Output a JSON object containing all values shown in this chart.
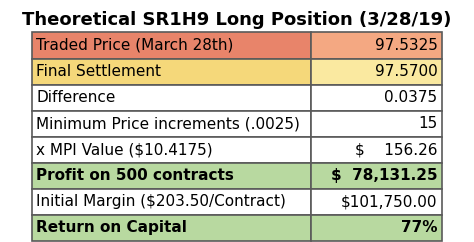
{
  "title": "Theoretical SR1H9 Long Position (3/28/19)",
  "rows": [
    {
      "label": "Traded Price (March 28th)",
      "value": "97.5325",
      "bg_label": "#E8846A",
      "bg_value": "#F4A882",
      "bold": false
    },
    {
      "label": "Final Settlement",
      "value": "97.5700",
      "bg_label": "#F5D87A",
      "bg_value": "#FAE9A0",
      "bold": false
    },
    {
      "label": "Difference",
      "value": "0.0375",
      "bg_label": "#FFFFFF",
      "bg_value": "#FFFFFF",
      "bold": false
    },
    {
      "label": "Minimum Price increments (.0025)",
      "value": "15",
      "bg_label": "#FFFFFF",
      "bg_value": "#FFFFFF",
      "bold": false
    },
    {
      "label": "x MPI Value ($10.4175)",
      "value": "$    156.26",
      "bg_label": "#FFFFFF",
      "bg_value": "#FFFFFF",
      "bold": false
    },
    {
      "label": "Profit on 500 contracts",
      "value": "$  78,131.25",
      "bg_label": "#B8D9A0",
      "bg_value": "#B8D9A0",
      "bold": true
    },
    {
      "label": "Initial Margin ($203.50/Contract)",
      "value": "$101,750.00",
      "bg_label": "#FFFFFF",
      "bg_value": "#FFFFFF",
      "bold": false
    },
    {
      "label": "Return on Capital",
      "value": "77%",
      "bg_label": "#B8D9A0",
      "bg_value": "#B8D9A0",
      "bold": true
    }
  ],
  "col_split": 0.68,
  "border_color": "#5A5A5A",
  "title_fontsize": 13,
  "cell_fontsize": 11
}
